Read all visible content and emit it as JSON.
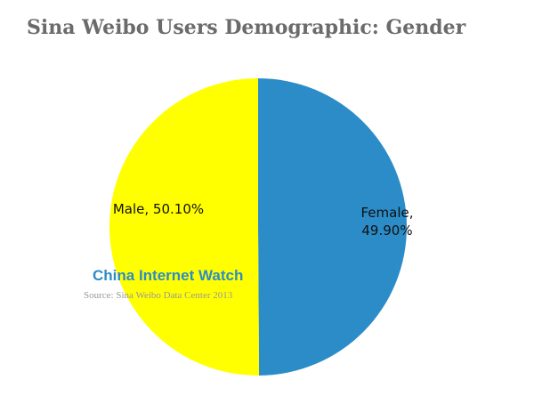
{
  "chart_data": {
    "type": "pie",
    "title": "Sina Weibo Users Demographic: Gender",
    "categories": [
      "Male",
      "Female"
    ],
    "values": [
      50.1,
      49.9
    ],
    "value_labels": [
      "Male, 50.10%",
      "Female, 49.90%"
    ],
    "colors": [
      "#ffff00",
      "#2b8cc8"
    ],
    "watermark": "China Internet Watch",
    "source": "Source: Sina Weibo Data Center 2013"
  }
}
